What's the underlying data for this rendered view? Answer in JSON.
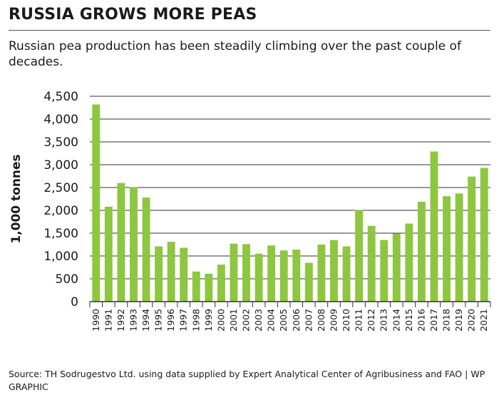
{
  "header": {
    "title": "RUSSIA GROWS MORE PEAS",
    "subtitle": "Russian pea production has been steadily climbing over the past couple of decades."
  },
  "footer": {
    "source": "Source: TH Sodrugestvo Ltd. using data supplied by Expert Analytical Center of Agribusiness and FAO",
    "credit": "WP GRAPHIC"
  },
  "colors": {
    "bar": "#8dc63f",
    "grid": "#333333",
    "text": "#1a1a1a"
  },
  "chart_data": {
    "type": "bar",
    "title": "RUSSIA GROWS MORE PEAS",
    "xlabel": "",
    "ylabel": "1,000 tonnes",
    "ylim": [
      0,
      4500
    ],
    "yticks": [
      0,
      500,
      1000,
      1500,
      2000,
      2500,
      3000,
      3500,
      4000,
      4500
    ],
    "ytick_labels": [
      "0",
      "500",
      "1,000",
      "1,500",
      "2,000",
      "2,500",
      "3,000",
      "3,500",
      "4,000",
      "4,500"
    ],
    "grid": true,
    "categories": [
      "1990",
      "1991",
      "1992",
      "1993",
      "1994",
      "1995",
      "1996",
      "1997",
      "1998",
      "1999",
      "2000",
      "2001",
      "2002",
      "2003",
      "2004",
      "2005",
      "2006",
      "2007",
      "2008",
      "2009",
      "2010",
      "2011",
      "2012",
      "2013",
      "2014",
      "2015",
      "2016",
      "2017",
      "2018",
      "2019",
      "2020",
      "2021"
    ],
    "values": [
      4320,
      2080,
      2600,
      2510,
      2280,
      1210,
      1310,
      1180,
      660,
      610,
      810,
      1270,
      1260,
      1050,
      1230,
      1120,
      1140,
      850,
      1250,
      1350,
      1210,
      2010,
      1660,
      1350,
      1490,
      1710,
      2190,
      3290,
      2310,
      2370,
      2740,
      2930
    ]
  }
}
